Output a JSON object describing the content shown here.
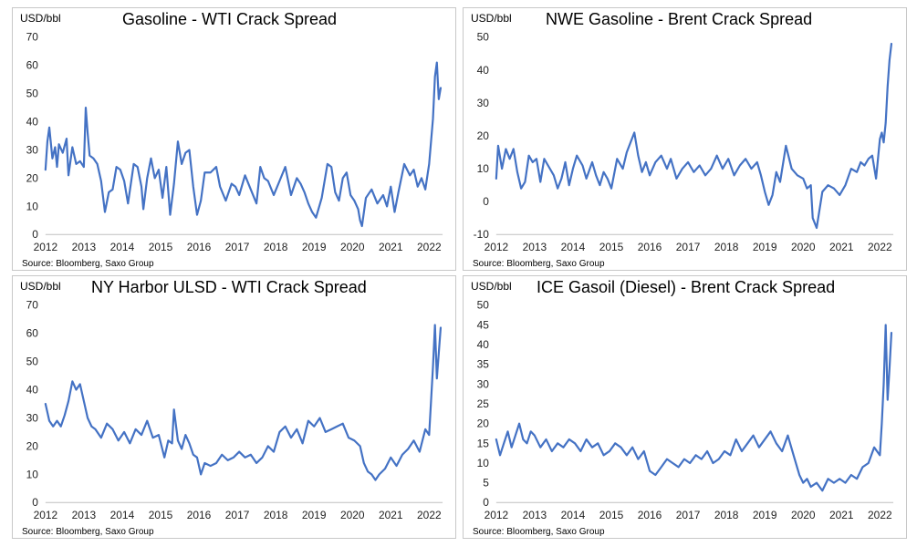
{
  "chart_data": [
    {
      "type": "line",
      "title": "Gasoline - WTI Crack Spread",
      "unit_label": "USD/bbl",
      "source": "Source: Bloomberg, Saxo Group",
      "ylim": [
        0,
        70
      ],
      "yticks": [
        0,
        10,
        20,
        30,
        40,
        50,
        60,
        70
      ],
      "xlim": [
        2012,
        2022.35
      ],
      "xticks": [
        2012,
        2013,
        2014,
        2015,
        2016,
        2017,
        2018,
        2019,
        2020,
        2021,
        2022
      ],
      "grid": false,
      "color": "#4472C4",
      "series": [
        {
          "x": [
            2012.0,
            2012.05,
            2012.1,
            2012.18,
            2012.25,
            2012.3,
            2012.35,
            2012.45,
            2012.55,
            2012.6,
            2012.7,
            2012.8,
            2012.9,
            2013.0,
            2013.05,
            2013.1,
            2013.15,
            2013.25,
            2013.35,
            2013.45,
            2013.55,
            2013.65,
            2013.75,
            2013.85,
            2013.95,
            2014.05,
            2014.15,
            2014.3,
            2014.4,
            2014.5,
            2014.55,
            2014.65,
            2014.75,
            2014.85,
            2014.95,
            2015.05,
            2015.15,
            2015.25,
            2015.35,
            2015.45,
            2015.55,
            2015.65,
            2015.75,
            2015.85,
            2015.95,
            2016.05,
            2016.15,
            2016.3,
            2016.45,
            2016.55,
            2016.7,
            2016.85,
            2016.95,
            2017.05,
            2017.2,
            2017.35,
            2017.5,
            2017.6,
            2017.7,
            2017.8,
            2017.95,
            2018.1,
            2018.25,
            2018.4,
            2018.55,
            2018.65,
            2018.75,
            2018.85,
            2018.95,
            2019.05,
            2019.2,
            2019.35,
            2019.45,
            2019.55,
            2019.65,
            2019.75,
            2019.85,
            2019.95,
            2020.05,
            2020.15,
            2020.2,
            2020.25,
            2020.35,
            2020.5,
            2020.65,
            2020.8,
            2020.9,
            2021.0,
            2021.1,
            2021.2,
            2021.35,
            2021.5,
            2021.6,
            2021.7,
            2021.8,
            2021.9,
            2022.0,
            2022.05,
            2022.1,
            2022.15,
            2022.2,
            2022.25,
            2022.3
          ],
          "y": [
            23,
            33,
            38,
            27,
            31,
            24,
            32,
            29,
            34,
            21,
            31,
            25,
            26,
            24,
            45,
            36,
            28,
            27,
            25,
            19,
            8,
            15,
            16,
            24,
            23,
            19,
            11,
            25,
            24,
            17,
            9,
            20,
            27,
            20,
            23,
            13,
            24,
            7,
            18,
            33,
            25,
            29,
            30,
            17,
            7,
            12,
            22,
            22,
            24,
            17,
            12,
            18,
            17,
            14,
            21,
            16,
            11,
            24,
            20,
            19,
            14,
            19,
            24,
            14,
            20,
            18,
            15,
            11,
            8,
            6,
            13,
            25,
            24,
            15,
            12,
            20,
            22,
            14,
            12,
            9,
            5,
            3,
            13,
            16,
            11,
            14,
            10,
            17,
            8,
            15,
            25,
            21,
            23,
            17,
            20,
            16,
            25,
            33,
            41,
            56,
            61,
            48,
            52
          ]
        }
      ]
    },
    {
      "type": "line",
      "title": "NWE Gasoline - Brent Crack Spread",
      "unit_label": "USD/bbl",
      "source": "Source: Bloomberg, Saxo Group",
      "ylim": [
        -10,
        50
      ],
      "yticks": [
        -10,
        0,
        10,
        20,
        30,
        40,
        50
      ],
      "xlim": [
        2012,
        2022.35
      ],
      "xticks": [
        2012,
        2013,
        2014,
        2015,
        2016,
        2017,
        2018,
        2019,
        2020,
        2021,
        2022
      ],
      "grid": false,
      "color": "#4472C4",
      "series": [
        {
          "x": [
            2012.0,
            2012.05,
            2012.15,
            2012.25,
            2012.35,
            2012.45,
            2012.55,
            2012.65,
            2012.75,
            2012.85,
            2012.95,
            2013.05,
            2013.15,
            2013.25,
            2013.35,
            2013.5,
            2013.6,
            2013.7,
            2013.8,
            2013.9,
            2014.0,
            2014.1,
            2014.25,
            2014.35,
            2014.5,
            2014.6,
            2014.7,
            2014.8,
            2014.9,
            2015.0,
            2015.15,
            2015.3,
            2015.4,
            2015.5,
            2015.6,
            2015.7,
            2015.8,
            2015.9,
            2016.0,
            2016.15,
            2016.3,
            2016.45,
            2016.55,
            2016.7,
            2016.85,
            2017.0,
            2017.15,
            2017.3,
            2017.45,
            2017.6,
            2017.75,
            2017.9,
            2018.05,
            2018.2,
            2018.35,
            2018.5,
            2018.65,
            2018.8,
            2018.9,
            2019.0,
            2019.1,
            2019.2,
            2019.3,
            2019.4,
            2019.55,
            2019.7,
            2019.85,
            2020.0,
            2020.1,
            2020.2,
            2020.25,
            2020.35,
            2020.5,
            2020.65,
            2020.8,
            2020.95,
            2021.1,
            2021.25,
            2021.4,
            2021.5,
            2021.6,
            2021.7,
            2021.8,
            2021.9,
            2022.0,
            2022.05,
            2022.1,
            2022.15,
            2022.2,
            2022.25,
            2022.3
          ],
          "y": [
            7,
            17,
            10,
            16,
            13,
            16,
            9,
            4,
            6,
            14,
            12,
            13,
            6,
            13,
            11,
            8,
            4,
            7,
            12,
            5,
            10,
            14,
            11,
            7,
            12,
            8,
            5,
            9,
            7,
            4,
            13,
            10,
            15,
            18,
            21,
            14,
            9,
            12,
            8,
            12,
            14,
            10,
            13,
            7,
            10,
            12,
            9,
            11,
            8,
            10,
            14,
            10,
            13,
            8,
            11,
            13,
            10,
            12,
            8,
            3,
            -1,
            2,
            9,
            6,
            17,
            10,
            8,
            7,
            4,
            5,
            -5,
            -8,
            3,
            5,
            4,
            2,
            5,
            10,
            9,
            12,
            11,
            13,
            14,
            7,
            19,
            21,
            18,
            24,
            35,
            43,
            48
          ]
        }
      ]
    },
    {
      "type": "line",
      "title": "NY Harbor ULSD - WTI Crack Spread",
      "unit_label": "USD/bbl",
      "source": "Source: Bloomberg, Saxo Group",
      "ylim": [
        0,
        70
      ],
      "yticks": [
        0,
        10,
        20,
        30,
        40,
        50,
        60,
        70
      ],
      "xlim": [
        2012,
        2022.35
      ],
      "xticks": [
        2012,
        2013,
        2014,
        2015,
        2016,
        2017,
        2018,
        2019,
        2020,
        2021,
        2022
      ],
      "grid": false,
      "color": "#4472C4",
      "series": [
        {
          "x": [
            2012.0,
            2012.1,
            2012.2,
            2012.3,
            2012.4,
            2012.5,
            2012.6,
            2012.7,
            2012.8,
            2012.9,
            2013.0,
            2013.1,
            2013.2,
            2013.3,
            2013.45,
            2013.6,
            2013.75,
            2013.9,
            2014.05,
            2014.2,
            2014.35,
            2014.5,
            2014.65,
            2014.8,
            2014.95,
            2015.1,
            2015.2,
            2015.3,
            2015.35,
            2015.45,
            2015.55,
            2015.65,
            2015.75,
            2015.85,
            2015.95,
            2016.05,
            2016.15,
            2016.3,
            2016.45,
            2016.6,
            2016.75,
            2016.9,
            2017.05,
            2017.2,
            2017.35,
            2017.5,
            2017.65,
            2017.8,
            2017.95,
            2018.1,
            2018.25,
            2018.4,
            2018.55,
            2018.7,
            2018.85,
            2019.0,
            2019.15,
            2019.3,
            2019.45,
            2019.6,
            2019.75,
            2019.9,
            2020.05,
            2020.2,
            2020.3,
            2020.4,
            2020.5,
            2020.6,
            2020.7,
            2020.85,
            2021.0,
            2021.15,
            2021.3,
            2021.45,
            2021.6,
            2021.75,
            2021.9,
            2022.0,
            2022.05,
            2022.1,
            2022.15,
            2022.2,
            2022.25,
            2022.3
          ],
          "y": [
            35,
            29,
            27,
            29,
            27,
            31,
            36,
            43,
            40,
            42,
            36,
            30,
            27,
            26,
            23,
            28,
            26,
            22,
            25,
            21,
            26,
            24,
            29,
            23,
            24,
            16,
            22,
            21,
            33,
            22,
            19,
            24,
            21,
            17,
            16,
            10,
            14,
            13,
            14,
            17,
            15,
            16,
            18,
            16,
            17,
            14,
            16,
            20,
            18,
            25,
            27,
            23,
            26,
            21,
            29,
            27,
            30,
            25,
            26,
            27,
            28,
            23,
            22,
            20,
            14,
            11,
            10,
            8,
            10,
            12,
            16,
            13,
            17,
            19,
            22,
            18,
            26,
            24,
            36,
            48,
            63,
            44,
            53,
            62
          ]
        }
      ]
    },
    {
      "type": "line",
      "title": "ICE Gasoil (Diesel) - Brent Crack Spread",
      "unit_label": "USD/bbl",
      "source": "Source: Bloomberg, Saxo Group",
      "ylim": [
        0,
        50
      ],
      "yticks": [
        0,
        5,
        10,
        15,
        20,
        25,
        30,
        35,
        40,
        45,
        50
      ],
      "xlim": [
        2012,
        2022.35
      ],
      "xticks": [
        2012,
        2013,
        2014,
        2015,
        2016,
        2017,
        2018,
        2019,
        2020,
        2021,
        2022
      ],
      "grid": false,
      "color": "#4472C4",
      "series": [
        {
          "x": [
            2012.0,
            2012.1,
            2012.2,
            2012.3,
            2012.4,
            2012.5,
            2012.6,
            2012.7,
            2012.8,
            2012.9,
            2013.0,
            2013.15,
            2013.3,
            2013.45,
            2013.6,
            2013.75,
            2013.9,
            2014.05,
            2014.2,
            2014.35,
            2014.5,
            2014.65,
            2014.8,
            2014.95,
            2015.1,
            2015.25,
            2015.4,
            2015.55,
            2015.7,
            2015.85,
            2016.0,
            2016.15,
            2016.3,
            2016.45,
            2016.6,
            2016.75,
            2016.9,
            2017.05,
            2017.2,
            2017.35,
            2017.5,
            2017.65,
            2017.8,
            2017.95,
            2018.1,
            2018.25,
            2018.4,
            2018.55,
            2018.7,
            2018.85,
            2019.0,
            2019.15,
            2019.3,
            2019.45,
            2019.6,
            2019.75,
            2019.9,
            2020.0,
            2020.1,
            2020.2,
            2020.35,
            2020.5,
            2020.65,
            2020.8,
            2020.95,
            2021.1,
            2021.25,
            2021.4,
            2021.55,
            2021.7,
            2021.85,
            2022.0,
            2022.05,
            2022.1,
            2022.15,
            2022.2,
            2022.25,
            2022.3
          ],
          "y": [
            16,
            12,
            15,
            18,
            14,
            17,
            20,
            16,
            15,
            18,
            17,
            14,
            16,
            13,
            15,
            14,
            16,
            15,
            13,
            16,
            14,
            15,
            12,
            13,
            15,
            14,
            12,
            14,
            11,
            13,
            8,
            7,
            9,
            11,
            10,
            9,
            11,
            10,
            12,
            11,
            13,
            10,
            11,
            13,
            12,
            16,
            13,
            15,
            17,
            14,
            16,
            18,
            15,
            13,
            17,
            12,
            7,
            5,
            6,
            4,
            5,
            3,
            6,
            5,
            6,
            5,
            7,
            6,
            9,
            10,
            14,
            12,
            20,
            30,
            45,
            26,
            34,
            43
          ]
        }
      ]
    }
  ]
}
